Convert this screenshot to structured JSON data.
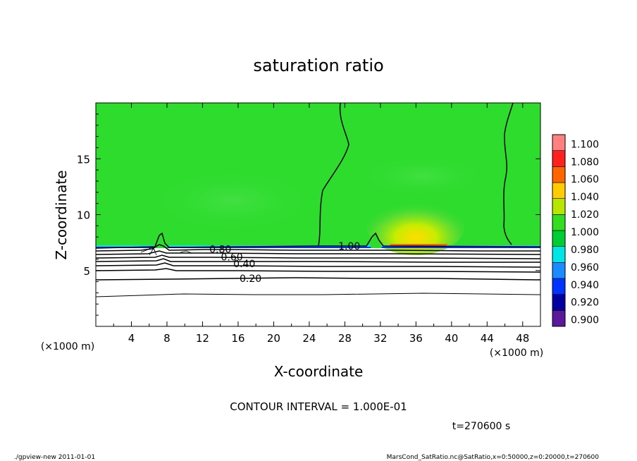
{
  "chart_data": {
    "type": "heatmap",
    "title": "saturation ratio",
    "xlabel": "X-coordinate",
    "ylabel": "Z-coordinate",
    "x_unit": "(×1000 m)",
    "z_unit": "(×1000 m)",
    "xlim": [
      0,
      50
    ],
    "ylim": [
      0,
      20
    ],
    "x_ticks": [
      "4",
      "8",
      "12",
      "16",
      "20",
      "24",
      "28",
      "32",
      "36",
      "40",
      "44",
      "48"
    ],
    "x_tick_values": [
      4,
      8,
      12,
      16,
      20,
      24,
      28,
      32,
      36,
      40,
      44,
      48
    ],
    "y_ticks": [
      "5",
      "10",
      "15"
    ],
    "y_tick_values": [
      5,
      10,
      15
    ],
    "contour_interval_label": "CONTOUR INTERVAL = 1.000E-01",
    "time_label": "t=270600 s",
    "contour_labels": [
      {
        "text": "1.00",
        "x": 28.5,
        "z": 7.2
      },
      {
        "text": "0.80",
        "x": 14.0,
        "z": 6.9
      },
      {
        "text": "0.60",
        "x": 15.3,
        "z": 6.2
      },
      {
        "text": "0.40",
        "x": 16.7,
        "z": 5.6
      },
      {
        "text": "0.20",
        "x": 17.4,
        "z": 4.3
      }
    ],
    "colorbar": {
      "levels": [
        "0.900",
        "0.920",
        "0.940",
        "0.960",
        "0.980",
        "1.000",
        "1.020",
        "1.040",
        "1.060",
        "1.080",
        "1.100"
      ],
      "colors": [
        "#5a189a",
        "#0000a0",
        "#0033ff",
        "#1a8cff",
        "#00e6e6",
        "#00cc33",
        "#33dd22",
        "#b8e600",
        "#ffcc00",
        "#ff6600",
        "#ff2020",
        "#ff8080"
      ]
    },
    "colors": {
      "field_green": "#2edc2e",
      "field_green_dark": "#22cc22",
      "supersat_yellow": "#b8e600"
    }
  },
  "footer": {
    "left": "./gpview-new  2011-01-01",
    "right": "MarsCond_SatRatio.nc@SatRatio,x=0:50000,z=0:20000,t=270600"
  }
}
